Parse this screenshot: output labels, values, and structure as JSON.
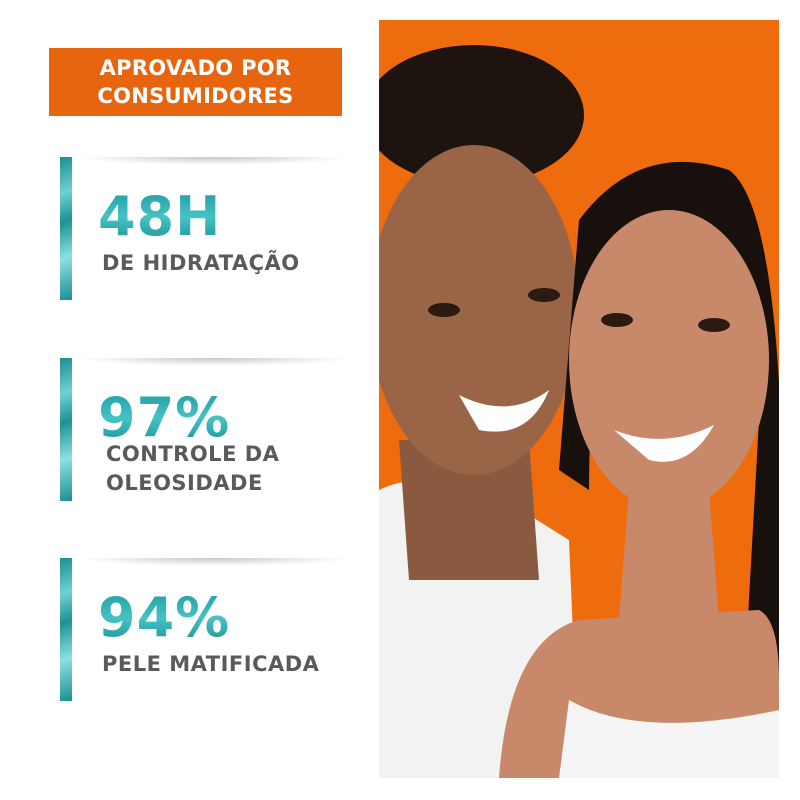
{
  "badge": {
    "line1": "APROVADO POR",
    "line2": "CONSUMIDORES",
    "color": "#e8650f"
  },
  "stats": [
    {
      "value": "48H",
      "label_lines": [
        "DE HIDRATAÇÃO"
      ]
    },
    {
      "value": "97%",
      "label_lines": [
        "CONTROLE DA",
        "OLEOSIDADE"
      ]
    },
    {
      "value": "94%",
      "label_lines": [
        "PELE MATIFICADA"
      ]
    }
  ],
  "photo": {
    "subject": "smiling-couple-photo",
    "background_color": "#ee6c0e"
  },
  "colors": {
    "accent_teal": "#1a9ea2",
    "text_gray": "#5a5a5a"
  }
}
